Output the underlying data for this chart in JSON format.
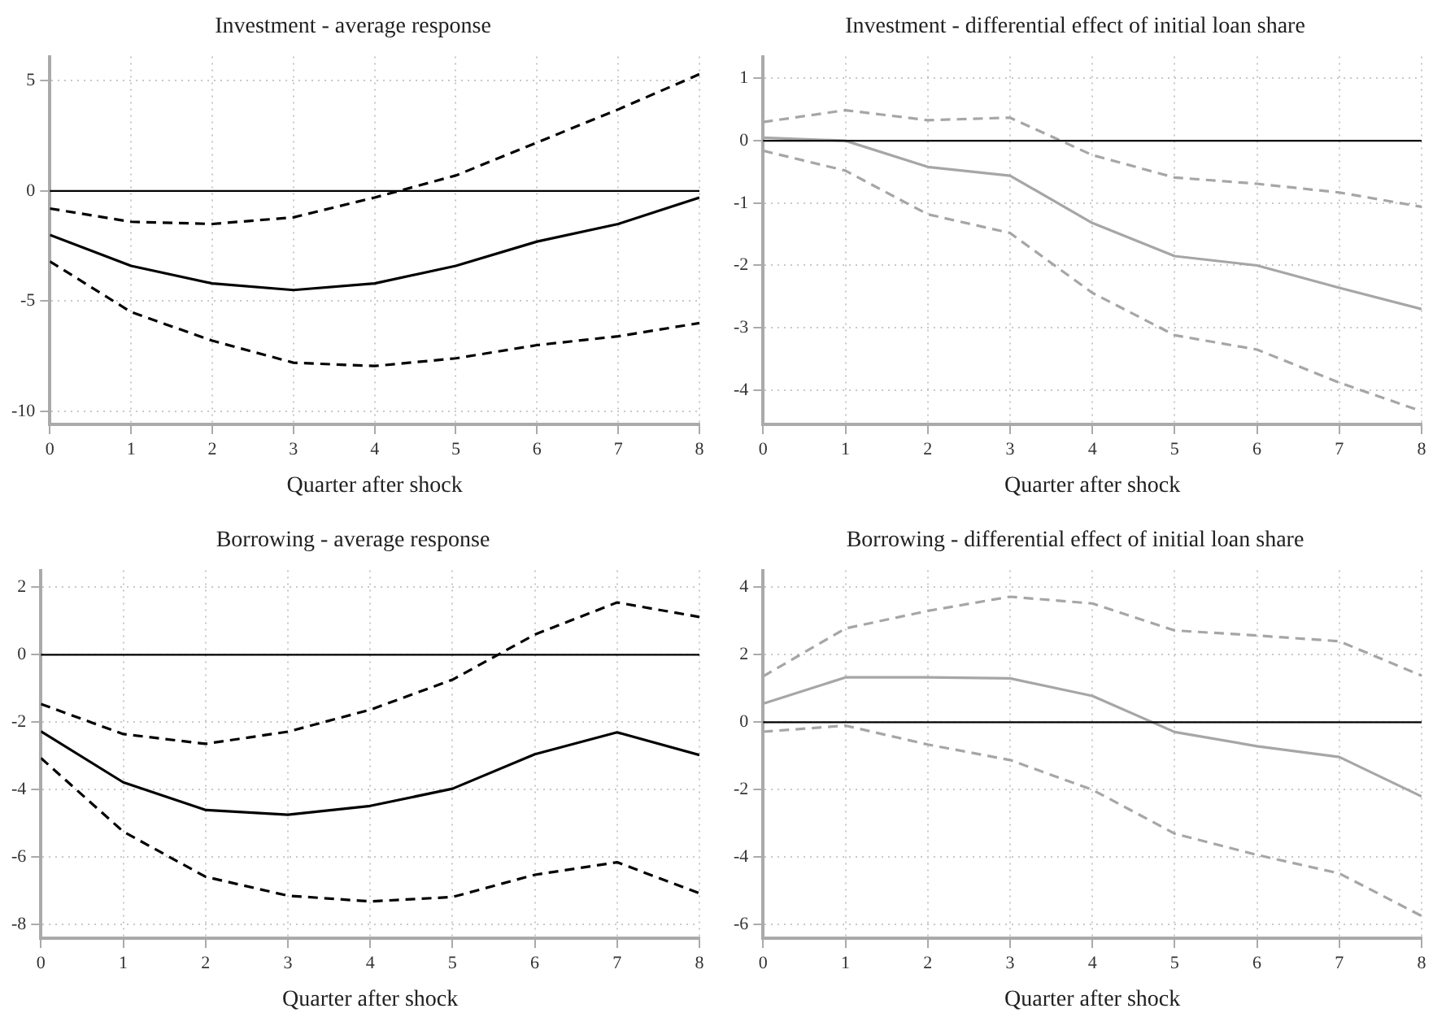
{
  "chart_data": [
    {
      "type": "line",
      "title": "Investment - average response",
      "xlabel": "Quarter after shock",
      "x": [
        0,
        1,
        2,
        3,
        4,
        5,
        6,
        7,
        8
      ],
      "xlim": [
        0,
        8
      ],
      "xticks": [
        0,
        1,
        2,
        3,
        4,
        5,
        6,
        7,
        8
      ],
      "ylim": [
        -10.6,
        6.1
      ],
      "yticks": [
        -10,
        -5,
        0,
        5
      ],
      "grid": true,
      "legend": false,
      "series": [
        {
          "color": "#000000",
          "line_style": "solid",
          "values": [
            -2.0,
            -3.4,
            -4.2,
            -4.5,
            -4.2,
            -3.4,
            -2.3,
            -1.5,
            -0.3
          ]
        },
        {
          "color": "#000000",
          "line_style": "dashed",
          "values": [
            -0.8,
            -1.4,
            -1.5,
            -1.2,
            -0.3,
            0.7,
            2.2,
            3.7,
            5.3
          ]
        },
        {
          "color": "#000000",
          "line_style": "dashed",
          "values": [
            -3.2,
            -5.5,
            -6.8,
            -7.8,
            -7.95,
            -7.6,
            -7.0,
            -6.6,
            -6.0
          ]
        }
      ],
      "ref_lines": [
        {
          "axis": "y",
          "value": 0,
          "color": "#000000",
          "line_style": "solid"
        }
      ]
    },
    {
      "type": "line",
      "title": "Investment - differential effect of initial loan share",
      "xlabel": "Quarter after shock",
      "x": [
        0,
        1,
        2,
        3,
        4,
        5,
        6,
        7,
        8
      ],
      "xlim": [
        0,
        8
      ],
      "xticks": [
        0,
        1,
        2,
        3,
        4,
        5,
        6,
        7,
        8
      ],
      "ylim": [
        -4.55,
        1.35
      ],
      "yticks": [
        -4,
        -3,
        -2,
        -1,
        0,
        1
      ],
      "grid": true,
      "legend": false,
      "series": [
        {
          "color": "#a6a6a6",
          "line_style": "solid",
          "values": [
            0.05,
            0,
            -0.42,
            -0.56,
            -1.32,
            -1.85,
            -2.0,
            -2.36,
            -2.7
          ]
        },
        {
          "color": "#a6a6a6",
          "line_style": "dashed",
          "values": [
            0.3,
            0.49,
            0.33,
            0.37,
            -0.23,
            -0.59,
            -0.69,
            -0.83,
            -1.06
          ]
        },
        {
          "color": "#a6a6a6",
          "line_style": "dashed",
          "values": [
            -0.16,
            -0.48,
            -1.18,
            -1.48,
            -2.44,
            -3.12,
            -3.35,
            -3.88,
            -4.34
          ]
        }
      ],
      "ref_lines": [
        {
          "axis": "y",
          "value": 0,
          "color": "#000000",
          "line_style": "solid"
        }
      ]
    },
    {
      "type": "line",
      "title": "Borrowing - average response",
      "xlabel": "Quarter after shock",
      "x": [
        0,
        1,
        2,
        3,
        4,
        5,
        6,
        7,
        8
      ],
      "xlim": [
        0,
        8
      ],
      "xticks": [
        0,
        1,
        2,
        3,
        4,
        5,
        6,
        7,
        8
      ],
      "ylim": [
        -8.4,
        2.5
      ],
      "yticks": [
        -8,
        -6,
        -4,
        -2,
        0,
        2
      ],
      "grid": true,
      "legend": false,
      "series": [
        {
          "color": "#000000",
          "line_style": "solid",
          "values": [
            -2.27,
            -3.78,
            -4.6,
            -4.74,
            -4.48,
            -3.97,
            -2.95,
            -2.3,
            -2.97
          ]
        },
        {
          "color": "#000000",
          "line_style": "dashed",
          "values": [
            -1.46,
            -2.35,
            -2.64,
            -2.28,
            -1.63,
            -0.74,
            0.6,
            1.55,
            1.12
          ]
        },
        {
          "color": "#000000",
          "line_style": "dashed",
          "values": [
            -3.06,
            -5.24,
            -6.58,
            -7.14,
            -7.31,
            -7.18,
            -6.52,
            -6.15,
            -7.07
          ]
        }
      ],
      "ref_lines": [
        {
          "axis": "y",
          "value": 0,
          "color": "#000000",
          "line_style": "solid"
        }
      ]
    },
    {
      "type": "line",
      "title": "Borrowing - differential effect of initial loan share",
      "xlabel": "Quarter after shock",
      "x": [
        0,
        1,
        2,
        3,
        4,
        5,
        6,
        7,
        8
      ],
      "xlim": [
        0,
        8
      ],
      "xticks": [
        0,
        1,
        2,
        3,
        4,
        5,
        6,
        7,
        8
      ],
      "ylim": [
        -6.4,
        4.5
      ],
      "yticks": [
        -6,
        -4,
        -2,
        0,
        2,
        4
      ],
      "grid": true,
      "legend": false,
      "series": [
        {
          "color": "#a6a6a6",
          "line_style": "solid",
          "values": [
            0.55,
            1.33,
            1.33,
            1.3,
            0.78,
            -0.29,
            -0.71,
            -1.03,
            -2.2
          ]
        },
        {
          "color": "#a6a6a6",
          "line_style": "dashed",
          "values": [
            1.36,
            2.78,
            3.3,
            3.72,
            3.52,
            2.72,
            2.57,
            2.4,
            1.38
          ]
        },
        {
          "color": "#a6a6a6",
          "line_style": "dashed",
          "values": [
            -0.28,
            -0.1,
            -0.66,
            -1.12,
            -2.0,
            -3.3,
            -3.93,
            -4.48,
            -5.74
          ]
        }
      ],
      "ref_lines": [
        {
          "axis": "y",
          "value": 0,
          "color": "#000000",
          "line_style": "solid"
        }
      ]
    }
  ]
}
